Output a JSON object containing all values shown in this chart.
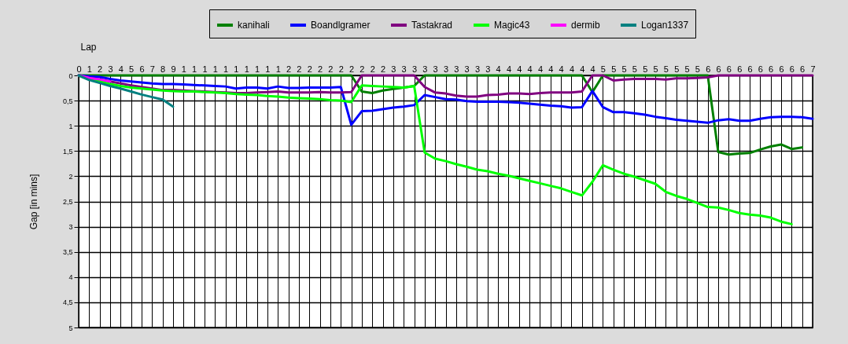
{
  "chart_data": {
    "type": "line",
    "xlabel": "Lap",
    "ylabel": "Gap [in mins]",
    "legend": "top",
    "grid": true,
    "marker": "none",
    "line_style": "solid",
    "ylim": [
      5,
      0
    ],
    "yticks": [
      0,
      {
        "value": 0.5,
        "label": "0,5"
      },
      1,
      {
        "value": 1.5,
        "label": "1,5"
      },
      2,
      {
        "value": 2.5,
        "label": "2,5"
      },
      3,
      {
        "value": 3.5,
        "label": "3,5"
      },
      4,
      {
        "value": 4.5,
        "label": "4,5"
      },
      5
    ],
    "categories": [
      "0",
      "1",
      "2",
      "3",
      "4",
      "5",
      "6",
      "7",
      "8",
      "9",
      "1",
      "1",
      "1",
      "1",
      "1",
      "1",
      "1",
      "1",
      "1",
      "1",
      "2",
      "2",
      "2",
      "2",
      "2",
      "2",
      "2",
      "2",
      "2",
      "2",
      "3",
      "3",
      "3",
      "3",
      "3",
      "3",
      "3",
      "3",
      "3",
      "3",
      "4",
      "4",
      "4",
      "4",
      "4",
      "4",
      "4",
      "4",
      "4",
      "4",
      "5",
      "5",
      "5",
      "5",
      "5",
      "5",
      "5",
      "5",
      "5",
      "5",
      "6",
      "6",
      "6",
      "6",
      "6",
      "6",
      "6",
      "6",
      "6",
      "6",
      "7"
    ],
    "series": [
      {
        "name": "kanihali",
        "color": "#008000",
        "values": [
          0,
          0,
          0,
          0,
          0,
          0,
          0,
          0,
          0,
          0,
          0,
          0,
          0,
          0,
          0,
          0,
          0,
          0,
          0,
          0,
          0,
          0,
          0,
          0,
          0,
          0,
          0,
          0.32,
          0.35,
          0.3,
          0.27,
          0.24,
          0.21,
          0,
          0,
          0,
          0,
          0,
          0,
          0,
          0,
          0,
          0,
          0,
          0,
          0,
          0,
          0,
          0,
          0.33,
          0,
          0,
          0,
          0,
          0,
          0,
          0,
          0,
          0,
          0,
          0,
          1.52,
          1.57,
          1.55,
          1.54,
          1.47,
          1.41,
          1.37,
          1.46,
          1.43,
          null
        ]
      },
      {
        "name": "Boandlgramer",
        "color": "#0000ff",
        "values": [
          0,
          0.02,
          0.03,
          0.07,
          0.1,
          0.12,
          0.14,
          0.16,
          0.17,
          0.17,
          0.18,
          0.19,
          0.2,
          0.21,
          0.22,
          0.26,
          0.24,
          0.24,
          0.26,
          0.22,
          0.25,
          0.25,
          0.24,
          0.24,
          0.24,
          0.23,
          0.98,
          0.71,
          0.7,
          0.67,
          0.64,
          0.62,
          0.59,
          0.39,
          0.43,
          0.47,
          0.48,
          0.51,
          0.52,
          0.52,
          0.52,
          0.53,
          0.54,
          0.56,
          0.58,
          0.6,
          0.61,
          0.64,
          0.63,
          0.31,
          0.63,
          0.73,
          0.73,
          0.75,
          0.78,
          0.82,
          0.85,
          0.88,
          0.9,
          0.92,
          0.94,
          0.89,
          0.87,
          0.9,
          0.9,
          0.86,
          0.83,
          0.82,
          0.82,
          0.83,
          0.86
        ]
      },
      {
        "name": "Tastakrad",
        "color": "#800080",
        "values": [
          0,
          0.05,
          0.08,
          0.12,
          0.16,
          0.2,
          0.23,
          0.26,
          0.29,
          0.29,
          0.3,
          0.31,
          0.32,
          0.33,
          0.34,
          0.35,
          0.35,
          0.34,
          0.33,
          0.32,
          0.34,
          0.34,
          0.34,
          0.33,
          0.34,
          0.34,
          0.33,
          0,
          0,
          0,
          0,
          0,
          0,
          0.23,
          0.34,
          0.36,
          0.4,
          0.42,
          0.42,
          0.39,
          0.38,
          0.36,
          0.36,
          0.37,
          0.35,
          0.34,
          0.34,
          0.34,
          0.32,
          0,
          0,
          0.1,
          0.08,
          0.07,
          0.07,
          0.07,
          0.08,
          0.06,
          0.06,
          0.05,
          0.04,
          0,
          0,
          0,
          0,
          0,
          0,
          0,
          0,
          0,
          0
        ]
      },
      {
        "name": "Magic43",
        "color": "#00ff00",
        "values": [
          0,
          0.08,
          0.12,
          0.17,
          0.21,
          0.24,
          0.26,
          0.28,
          0.3,
          0.31,
          0.32,
          0.32,
          0.33,
          0.34,
          0.35,
          0.37,
          0.38,
          0.39,
          0.41,
          0.42,
          0.44,
          0.45,
          0.46,
          0.47,
          0.49,
          0.5,
          0.53,
          0.2,
          0.21,
          0.22,
          0.23,
          0.24,
          0.21,
          1.53,
          1.65,
          1.7,
          1.76,
          1.81,
          1.87,
          1.9,
          1.95,
          1.99,
          2.04,
          2.09,
          2.14,
          2.19,
          2.24,
          2.31,
          2.38,
          2.11,
          1.78,
          1.87,
          1.95,
          2.01,
          2.08,
          2.15,
          2.31,
          2.39,
          2.45,
          2.53,
          2.61,
          2.62,
          2.67,
          2.73,
          2.76,
          2.78,
          2.82,
          2.9,
          2.95,
          null,
          null
        ]
      },
      {
        "name": "dermib",
        "color": "#ff00ff",
        "values": [
          0,
          0.05,
          0.08,
          0.12,
          null,
          null,
          null,
          null,
          null,
          null,
          null,
          null,
          null,
          null,
          null,
          null,
          null,
          null,
          null,
          null,
          null,
          null,
          null,
          null,
          null,
          null,
          null,
          null,
          null,
          null,
          null,
          null,
          null,
          null,
          null,
          null,
          null,
          null,
          null,
          null,
          null,
          null,
          null,
          null,
          null,
          null,
          null,
          null,
          null,
          null,
          null,
          null,
          null,
          null,
          null,
          null,
          null,
          null,
          null,
          null,
          null,
          null,
          null,
          null,
          null,
          null,
          null,
          null,
          null,
          null,
          null
        ]
      },
      {
        "name": "Logan1337",
        "color": "#008080",
        "values": [
          0,
          0.09,
          0.15,
          0.21,
          0.26,
          0.32,
          0.38,
          0.43,
          0.48,
          0.62,
          null,
          null,
          null,
          null,
          null,
          null,
          null,
          null,
          null,
          null,
          null,
          null,
          null,
          null,
          null,
          null,
          null,
          null,
          null,
          null,
          null,
          null,
          null,
          null,
          null,
          null,
          null,
          null,
          null,
          null,
          null,
          null,
          null,
          null,
          null,
          null,
          null,
          null,
          null,
          null,
          null,
          null,
          null,
          null,
          null,
          null,
          null,
          null,
          null,
          null,
          null,
          null,
          null,
          null,
          null,
          null,
          null,
          null,
          null,
          null,
          null
        ]
      }
    ]
  }
}
